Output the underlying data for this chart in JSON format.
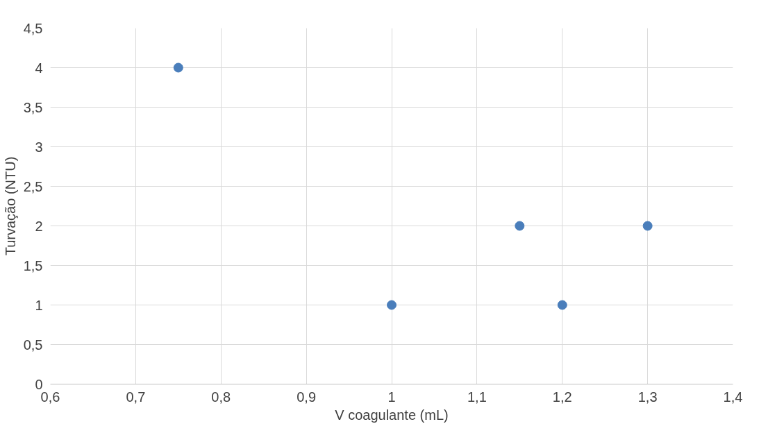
{
  "chart_data": {
    "type": "scatter",
    "xlabel": "V coagulante (mL)",
    "ylabel": "Turvação (NTU)",
    "x": [
      0.75,
      1,
      1.15,
      1.2,
      1.3
    ],
    "series": [
      {
        "color": "#4a7ebb",
        "values": [
          4,
          1,
          2,
          1,
          2
        ]
      }
    ],
    "xlim": [
      0.6,
      1.4
    ],
    "xticks": [
      {
        "value": 0.6,
        "label": "0,6"
      },
      {
        "value": 0.7,
        "label": "0,7"
      },
      {
        "value": 0.8,
        "label": "0,8"
      },
      {
        "value": 0.9,
        "label": "0,9"
      },
      1,
      {
        "value": 1.1,
        "label": "1,1"
      },
      {
        "value": 1.2,
        "label": "1,2"
      },
      {
        "value": 1.3,
        "label": "1,3"
      },
      {
        "value": 1.4,
        "label": "1,4"
      }
    ],
    "ylim": [
      0,
      4.5
    ],
    "yticks": [
      0,
      {
        "value": 0.5,
        "label": "0,5"
      },
      1,
      {
        "value": 1.5,
        "label": "1,5"
      },
      2,
      {
        "value": 2.5,
        "label": "2,5"
      },
      3,
      {
        "value": 3.5,
        "label": "3,5"
      },
      4,
      {
        "value": 4.5,
        "label": "4,5"
      }
    ],
    "grid": true,
    "marker": "circle"
  }
}
